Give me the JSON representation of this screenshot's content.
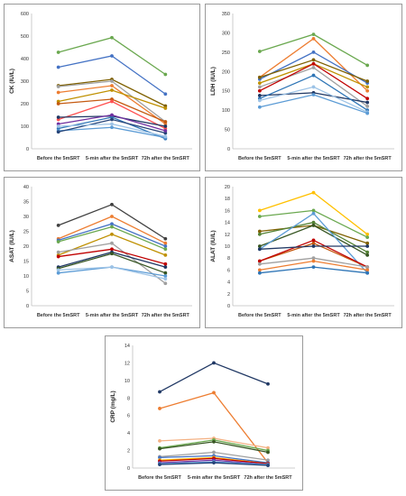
{
  "chart_data": [
    {
      "type": "line",
      "ylabel": "CK (IU/L)",
      "categories": [
        "Before the 5mSRT",
        "5-min after the 5mSRT",
        "72h after the 5mSRT"
      ],
      "ylim": [
        0,
        600
      ],
      "yticks": [
        0,
        100,
        200,
        300,
        400,
        500,
        600
      ],
      "series": [
        {
          "color": "#6aa84f",
          "values": [
            428,
            493,
            330
          ]
        },
        {
          "color": "#4472c4",
          "values": [
            362,
            412,
            243
          ]
        },
        {
          "color": "#7f6000",
          "values": [
            280,
            308,
            190
          ]
        },
        {
          "color": "#ed7d31",
          "values": [
            250,
            280,
            110
          ]
        },
        {
          "color": "#a0a0a0",
          "values": [
            276,
            300,
            120
          ]
        },
        {
          "color": "#bf9000",
          "values": [
            210,
            260,
            180
          ]
        },
        {
          "color": "#c55a11",
          "values": [
            200,
            220,
            120
          ]
        },
        {
          "color": "#ff5050",
          "values": [
            130,
            210,
            90
          ]
        },
        {
          "color": "#203864",
          "values": [
            140,
            145,
            100
          ]
        },
        {
          "color": "#2e75b6",
          "values": [
            90,
            140,
            45
          ]
        },
        {
          "color": "#5b9bd5",
          "values": [
            80,
            95,
            50
          ]
        },
        {
          "color": "#264478",
          "values": [
            75,
            130,
            70
          ]
        },
        {
          "color": "#7030a0",
          "values": [
            110,
            150,
            80
          ]
        },
        {
          "color": "#9dc3e6",
          "values": [
            100,
            110,
            55
          ]
        }
      ]
    },
    {
      "type": "line",
      "ylabel": "LDH (IU/L)",
      "categories": [
        "Before the 5mSRT",
        "5-min after the 5mSRT",
        "72h after the 5mSRT"
      ],
      "ylim": [
        0,
        350
      ],
      "yticks": [
        0,
        50,
        100,
        150,
        200,
        250,
        300,
        350
      ],
      "series": [
        {
          "color": "#6aa84f",
          "values": [
            252,
            296,
            216
          ]
        },
        {
          "color": "#ed7d31",
          "values": [
            185,
            285,
            150
          ]
        },
        {
          "color": "#4472c4",
          "values": [
            180,
            250,
            170
          ]
        },
        {
          "color": "#7f6000",
          "values": [
            185,
            230,
            175
          ]
        },
        {
          "color": "#bf9000",
          "values": [
            170,
            220,
            160
          ]
        },
        {
          "color": "#a0a0a0",
          "values": [
            160,
            210,
            110
          ]
        },
        {
          "color": "#c00000",
          "values": [
            150,
            220,
            130
          ]
        },
        {
          "color": "#203864",
          "values": [
            138,
            145,
            120
          ]
        },
        {
          "color": "#2e75b6",
          "values": [
            130,
            190,
            100
          ]
        },
        {
          "color": "#9dc3e6",
          "values": [
            125,
            160,
            95
          ]
        },
        {
          "color": "#5b9bd5",
          "values": [
            108,
            140,
            92
          ]
        }
      ]
    },
    {
      "type": "line",
      "ylabel": "ASAT (IU/L)",
      "categories": [
        "Before the 5mSRT",
        "5-min after the 5mSRT",
        "72h after the 5mSRT"
      ],
      "ylim": [
        0,
        40
      ],
      "yticks": [
        0,
        5,
        10,
        15,
        20,
        25,
        30,
        35,
        40
      ],
      "series": [
        {
          "color": "#404040",
          "values": [
            27,
            34,
            22.5
          ]
        },
        {
          "color": "#ed7d31",
          "values": [
            22.5,
            30,
            21
          ]
        },
        {
          "color": "#4472c4",
          "values": [
            22,
            27.5,
            20
          ]
        },
        {
          "color": "#6aa84f",
          "values": [
            21.5,
            26.5,
            19
          ]
        },
        {
          "color": "#bf9000",
          "values": [
            17,
            24,
            17
          ]
        },
        {
          "color": "#a0a0a0",
          "values": [
            18,
            21,
            7.5
          ]
        },
        {
          "color": "#c00000",
          "values": [
            16.5,
            19,
            14
          ]
        },
        {
          "color": "#203864",
          "values": [
            13,
            18,
            13
          ]
        },
        {
          "color": "#375623",
          "values": [
            12.5,
            17.5,
            11
          ]
        },
        {
          "color": "#5b9bd5",
          "values": [
            11,
            13,
            10
          ]
        },
        {
          "color": "#9dc3e6",
          "values": [
            12,
            13,
            9
          ]
        }
      ]
    },
    {
      "type": "line",
      "ylabel": "ALAT (IU/L)",
      "categories": [
        "Before the 5mSRT",
        "5-min after the 5mSRT",
        "72h after the 5mSRT"
      ],
      "ylim": [
        0,
        20
      ],
      "yticks": [
        0,
        2,
        4,
        6,
        8,
        10,
        12,
        14,
        16,
        18,
        20
      ],
      "series": [
        {
          "color": "#ffc000",
          "values": [
            16,
            19,
            12
          ]
        },
        {
          "color": "#6aa84f",
          "values": [
            15,
            16,
            11.5
          ]
        },
        {
          "color": "#7f6000",
          "values": [
            12.5,
            13.5,
            10.5
          ]
        },
        {
          "color": "#548235",
          "values": [
            12,
            14,
            9
          ]
        },
        {
          "color": "#375623",
          "values": [
            10,
            13.5,
            8.5
          ]
        },
        {
          "color": "#5b9bd5",
          "values": [
            9.5,
            15.5,
            5.5
          ]
        },
        {
          "color": "#c55a11",
          "values": [
            7.5,
            10.5,
            6.5
          ]
        },
        {
          "color": "#c00000",
          "values": [
            7.5,
            11,
            6.5
          ]
        },
        {
          "color": "#a0a0a0",
          "values": [
            7,
            8,
            6.5
          ]
        },
        {
          "color": "#ed7d31",
          "values": [
            6,
            7.5,
            6
          ]
        },
        {
          "color": "#2e75b6",
          "values": [
            5.5,
            6.5,
            5.5
          ]
        },
        {
          "color": "#203864",
          "values": [
            9.5,
            10,
            10
          ]
        }
      ]
    },
    {
      "type": "line",
      "ylabel": "CRP (mg/L)",
      "categories": [
        "Before the 5mSRT",
        "5-min after the 5mSRT",
        "72h after the 5mSRT"
      ],
      "ylim": [
        0,
        14
      ],
      "yticks": [
        0,
        2,
        4,
        6,
        8,
        10,
        12,
        14
      ],
      "series": [
        {
          "color": "#203864",
          "values": [
            8.7,
            12,
            9.6
          ]
        },
        {
          "color": "#ed7d31",
          "values": [
            6.8,
            8.6,
            0.6
          ]
        },
        {
          "color": "#f4b183",
          "values": [
            3.1,
            3.4,
            2.3
          ]
        },
        {
          "color": "#6aa84f",
          "values": [
            2.3,
            3.2,
            2.0
          ]
        },
        {
          "color": "#375623",
          "values": [
            2.2,
            3.0,
            1.8
          ]
        },
        {
          "color": "#a0a0a0",
          "values": [
            1.3,
            1.8,
            0.9
          ]
        },
        {
          "color": "#4472c4",
          "values": [
            1.2,
            1.4,
            0.6
          ]
        },
        {
          "color": "#ffc000",
          "values": [
            0.9,
            1.2,
            0.5
          ]
        },
        {
          "color": "#c00000",
          "values": [
            0.8,
            1.1,
            0.5
          ]
        },
        {
          "color": "#7030a0",
          "values": [
            0.6,
            0.9,
            0.4
          ]
        },
        {
          "color": "#5b9bd5",
          "values": [
            0.5,
            0.7,
            0.4
          ]
        },
        {
          "color": "#264478",
          "values": [
            0.4,
            0.6,
            0.3
          ]
        }
      ]
    }
  ]
}
